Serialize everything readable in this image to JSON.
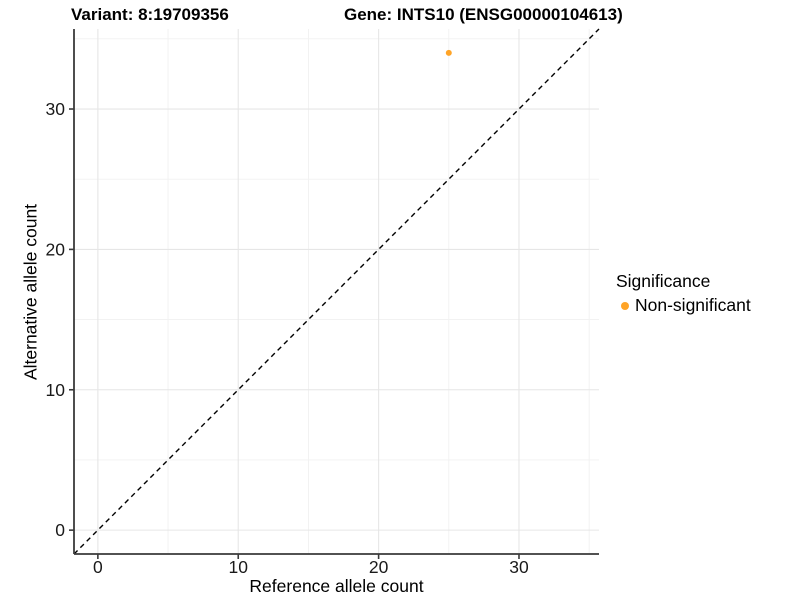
{
  "chart_data": {
    "type": "scatter",
    "title_left": "Variant: 8:19709356",
    "title_right": "Gene: INTS10 (ENSG00000104613)",
    "xlabel": "Reference allele count",
    "ylabel": "Alternative allele count",
    "xlim": [
      -1.7,
      35.7
    ],
    "ylim": [
      -1.7,
      35.7
    ],
    "x_ticks": [
      0,
      10,
      20,
      30
    ],
    "y_ticks": [
      0,
      10,
      20,
      30
    ],
    "x_minor_breaks": [
      5,
      15,
      25,
      35
    ],
    "y_minor_breaks": [
      5,
      15,
      25,
      35
    ],
    "grid": "major-and-minor, light gray on white panel",
    "series": [
      {
        "name": "Non-significant",
        "color": "#FFA427",
        "points": [
          {
            "x": 25,
            "y": 34
          }
        ]
      }
    ],
    "reference_line": {
      "description": "identity line y = x",
      "style": "dashed",
      "color": "#000000",
      "from": -1.7,
      "to": 35.7
    },
    "legend": {
      "title": "Significance",
      "position": "right",
      "items": [
        {
          "label": "Non-significant",
          "color": "#FFA427"
        }
      ]
    }
  },
  "colors": {
    "background": "#ffffff",
    "axis_line": "#3a3a3a",
    "major_grid": "#e6e6e6",
    "minor_grid": "#f1f1f1",
    "tick_text": "#1a1a1a",
    "point": "#FFA427"
  }
}
